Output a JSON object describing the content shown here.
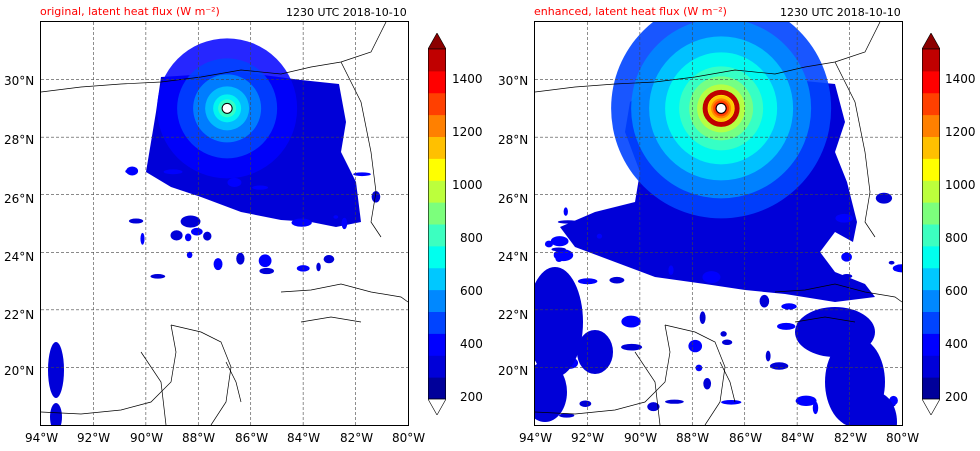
{
  "panels": [
    {
      "title_left": "original, latent heat flux (W m⁻²)",
      "title_right": "1230 UTC 2018-10-10",
      "intensity": "original"
    },
    {
      "title_left": "enhanced, latent heat flux (W m⁻²)",
      "title_right": "1230 UTC 2018-10-10",
      "intensity": "enhanced"
    }
  ],
  "axes": {
    "lat_labels": [
      "30°N",
      "28°N",
      "26°N",
      "24°N",
      "22°N",
      "20°N"
    ],
    "lon_labels": [
      "94°W",
      "92°W",
      "90°W",
      "88°W",
      "86°W",
      "84°W",
      "82°W",
      "80°W"
    ]
  },
  "colorbar": {
    "ticks": [
      "1400",
      "1200",
      "1000",
      "800",
      "600",
      "400",
      "200"
    ],
    "colors": [
      "#00009a",
      "#0000d8",
      "#0000ff",
      "#0044ff",
      "#0088ff",
      "#00c8ff",
      "#00ffee",
      "#3cffc0",
      "#7cff7c",
      "#bcff3c",
      "#ffff00",
      "#ffc000",
      "#ff8000",
      "#ff4000",
      "#ff0000",
      "#c00000"
    ],
    "extend_top_color": "#8b0000",
    "extend_bottom_color": "#ffffff",
    "range": [
      200,
      1500
    ]
  },
  "map_data": {
    "region": "Gulf of Mexico",
    "lon_range": [
      -94,
      -80
    ],
    "lat_range": [
      18,
      32
    ],
    "hurricane_center": {
      "lon": -86.9,
      "lat": 29.0
    }
  }
}
